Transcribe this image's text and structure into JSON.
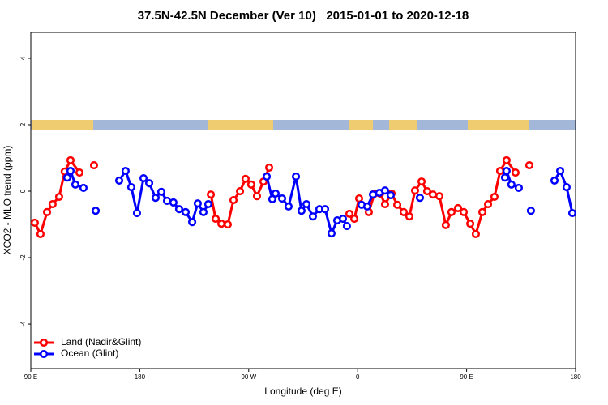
{
  "chart_data": {
    "type": "line",
    "title": "37.5N-42.5N December (Ver 10)   2015-01-01 to 2020-12-18",
    "xlabel": "Longitude (deg E)",
    "ylabel": "XCO2 - MLO trend (ppm)",
    "xlim": [
      90,
      540
    ],
    "xticks": [
      {
        "value": 90,
        "label": "90 E"
      },
      {
        "value": 180,
        "label": "180"
      },
      {
        "value": 270,
        "label": "90 W"
      },
      {
        "value": 360,
        "label": "0"
      },
      {
        "value": 450,
        "label": "90 E"
      },
      {
        "value": 540,
        "label": "180"
      }
    ],
    "ylim": [
      -5.34,
      4.78
    ],
    "yticks": [
      -4,
      -2,
      0,
      2,
      4
    ],
    "legend": "bottom-left",
    "series": [
      {
        "name": "Land (Nadir&Glint)",
        "color": "#ff0000",
        "x": [
          93.3,
          98,
          103.4,
          108,
          113.4,
          118,
          122.8,
          130.2,
          null,
          142.2,
          null,
          238.7,
          242.7,
          247.4,
          252.7,
          257.4,
          262.8,
          267.4,
          272.1,
          276.8,
          282.2,
          286.9,
          null,
          353.2,
          357.2,
          361.2,
          369.2,
          373.9,
          378.6,
          382.6,
          388,
          392.7,
          398,
          402.7,
          407.4,
          412.8,
          417.4,
          422.1,
          427.5,
          432.8,
          437.5,
          442.9,
          447.6,
          453,
          457.6,
          463,
          467.7,
          473,
          477.7,
          483,
          490.4,
          null,
          501.8
        ],
        "values": [
          -0.95,
          -1.29,
          -0.63,
          -0.39,
          -0.17,
          0.59,
          0.93,
          0.56,
          null,
          0.78,
          null,
          -0.1,
          -0.83,
          -0.98,
          -1.0,
          -0.27,
          0,
          0.37,
          0.2,
          -0.15,
          0.29,
          0.71,
          null,
          -0.68,
          -0.83,
          -0.22,
          -0.63,
          -0.07,
          -0.07,
          -0.39,
          -0.07,
          -0.41,
          -0.63,
          -0.76,
          0.02,
          0.29,
          0,
          -0.1,
          -0.15,
          -1.02,
          -0.63,
          -0.51,
          -0.63,
          -0.98,
          -1.29,
          -0.63,
          -0.39,
          -0.17,
          0.61,
          0.93,
          0.56,
          null,
          0.78
        ]
      },
      {
        "name": "Ocean (Glint)",
        "color": "#0000ff",
        "x": [
          120.1,
          122.8,
          126.8,
          133.5,
          null,
          143.6,
          null,
          163,
          168.3,
          173,
          177.7,
          183.1,
          187.8,
          193.1,
          197.8,
          202.5,
          207.8,
          212.5,
          217.9,
          223.3,
          227.9,
          232.6,
          236.6,
          null,
          284.9,
          289.5,
          292.2,
          297.6,
          302.9,
          309,
          313.6,
          317.7,
          323,
          328.4,
          333.1,
          338.4,
          343.1,
          347.8,
          351.1,
          null,
          363.2,
          367.9,
          372.6,
          377.9,
          382.6,
          387.3,
          null,
          411.4,
          null,
          481.7,
          483,
          487,
          493.1,
          null,
          503.1,
          null,
          522.6,
          527.3,
          532.6,
          537.3
        ],
        "values": [
          0.41,
          0.61,
          0.2,
          0.1,
          null,
          -0.59,
          null,
          0.32,
          0.61,
          0.12,
          -0.66,
          0.39,
          0.24,
          -0.2,
          -0.02,
          -0.29,
          -0.34,
          -0.54,
          -0.63,
          -0.93,
          -0.37,
          -0.63,
          -0.39,
          null,
          0.44,
          -0.24,
          -0.07,
          -0.22,
          -0.46,
          0.44,
          -0.59,
          -0.39,
          -0.76,
          -0.54,
          -0.54,
          -1.27,
          -0.88,
          -0.83,
          -1.05,
          null,
          -0.41,
          -0.46,
          -0.1,
          -0.05,
          0.02,
          -0.12,
          null,
          -0.2,
          null,
          0.41,
          0.61,
          0.2,
          0.1,
          null,
          -0.59,
          null,
          0.32,
          0.61,
          0.12,
          -0.66
        ]
      }
    ]
  }
}
